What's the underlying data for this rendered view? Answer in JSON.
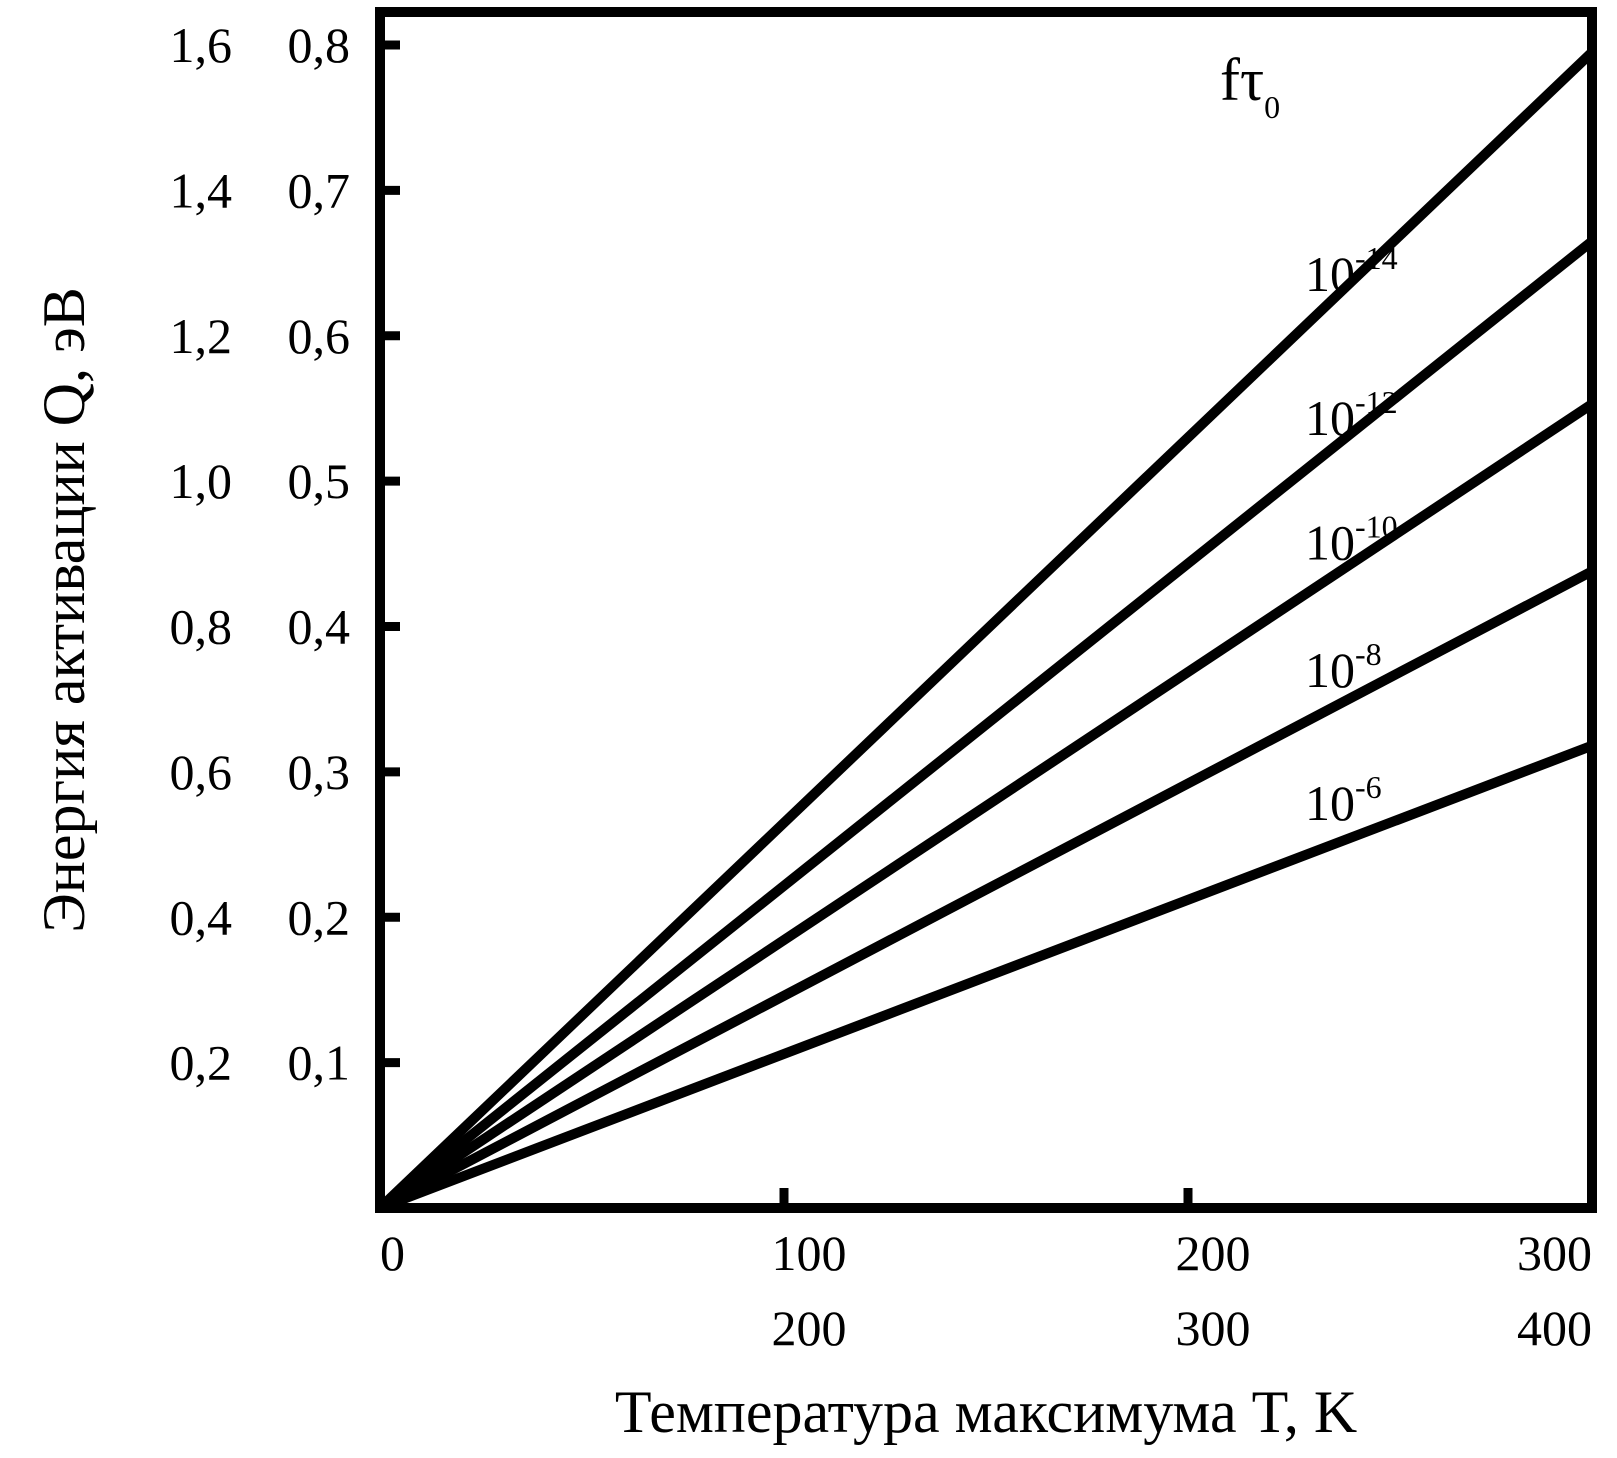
{
  "chart_data": {
    "type": "line",
    "title": "",
    "xlabel": "Температура максимума T, K",
    "ylabel": "Энергия активации Q, эВ",
    "legend_title": {
      "base": "fτ",
      "sub": "0"
    },
    "xlim": [
      0,
      300
    ],
    "ylim": [
      0,
      0.8
    ],
    "x_ticks": [
      0,
      100,
      200,
      300
    ],
    "x_tick_labels_row1": [
      "0",
      "100",
      "200",
      "300"
    ],
    "x_tick_labels_row2": [
      "",
      "200",
      "300",
      "400"
    ],
    "y_ticks": [
      0.1,
      0.2,
      0.3,
      0.4,
      0.5,
      0.6,
      0.7,
      0.8
    ],
    "y_tick_labels_inner": [
      "0,1",
      "0,2",
      "0,3",
      "0,4",
      "0,5",
      "0,6",
      "0,7",
      "0,8"
    ],
    "y_tick_labels_outer": [
      "0,2",
      "0,4",
      "0,6",
      "0,8",
      "1,0",
      "1,2",
      "1,4",
      "1,6"
    ],
    "grid": false,
    "series": [
      {
        "name": "10-14",
        "label_base": "10",
        "label_exp": "-14",
        "x": [
          0,
          300
        ],
        "y": [
          0,
          0.795
        ]
      },
      {
        "name": "10-12",
        "label_base": "10",
        "label_exp": "-12",
        "x": [
          0,
          300
        ],
        "y": [
          0,
          0.665
        ]
      },
      {
        "name": "10-10",
        "label_base": "10",
        "label_exp": "-10",
        "x": [
          0,
          300
        ],
        "y": [
          0,
          0.553
        ]
      },
      {
        "name": "10-8",
        "label_base": "10",
        "label_exp": "-8",
        "x": [
          0,
          300
        ],
        "y": [
          0,
          0.438
        ]
      },
      {
        "name": "10-6",
        "label_base": "10",
        "label_exp": "-6",
        "x": [
          0,
          300
        ],
        "y": [
          0,
          0.318
        ]
      }
    ]
  }
}
